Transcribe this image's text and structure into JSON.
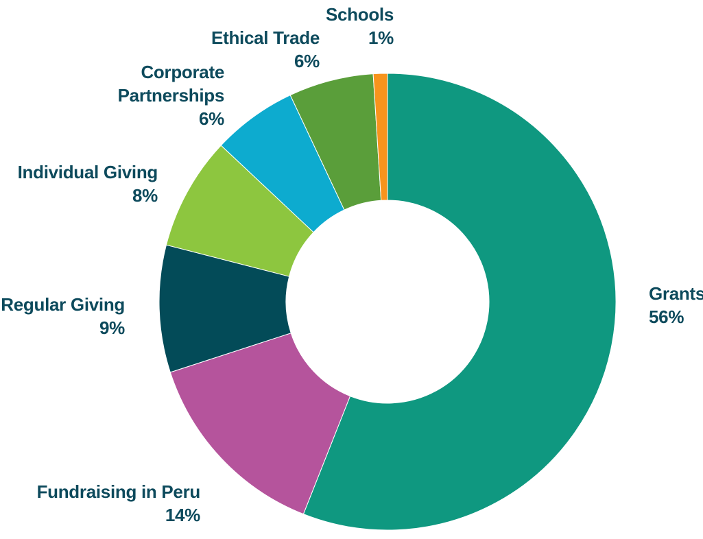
{
  "chart_data": {
    "type": "pie",
    "donut": true,
    "title": "",
    "categories": [
      "Grants",
      "Fundraising in Peru",
      "Regular Giving",
      "Individual Giving",
      "Corporate Partnerships",
      "Ethical Trade",
      "Schools"
    ],
    "values": [
      56,
      14,
      9,
      8,
      6,
      6,
      1
    ],
    "slices": [
      {
        "name": "Grants",
        "name_lines": [
          "Grants"
        ],
        "value": 56,
        "pct_label": "56%",
        "color": "#0f9880"
      },
      {
        "name": "Fundraising in Peru",
        "name_lines": [
          "Fundraising in Peru"
        ],
        "value": 14,
        "pct_label": "14%",
        "color": "#b5549c"
      },
      {
        "name": "Regular Giving",
        "name_lines": [
          "Regular Giving"
        ],
        "value": 9,
        "pct_label": "9%",
        "color": "#034b58"
      },
      {
        "name": "Individual Giving",
        "name_lines": [
          "Individual Giving"
        ],
        "value": 8,
        "pct_label": "8%",
        "color": "#8dc63f"
      },
      {
        "name": "Corporate Partnerships",
        "name_lines": [
          "Corporate",
          "Partnerships"
        ],
        "value": 6,
        "pct_label": "6%",
        "color": "#0dabcf"
      },
      {
        "name": "Ethical Trade",
        "name_lines": [
          "Ethical Trade"
        ],
        "value": 6,
        "pct_label": "6%",
        "color": "#5a9e3a"
      },
      {
        "name": "Schools",
        "name_lines": [
          "Schools"
        ],
        "value": 1,
        "pct_label": "1%",
        "color": "#f7941d"
      }
    ],
    "label_color": "#0d4a5c"
  }
}
